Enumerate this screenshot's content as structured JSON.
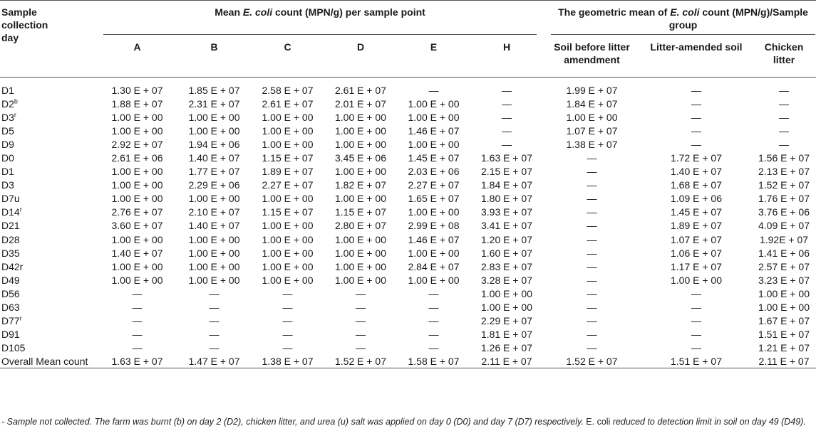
{
  "header": {
    "day_col": "Sample collection day",
    "group1_prefix": "Mean ",
    "group1_italic": "E. coli",
    "group1_suffix": " count (MPN/g) per sample point",
    "group2_prefix": "The geometric mean of ",
    "group2_italic": "E. coli",
    "group2_suffix": " count (MPN/g)/Sample group",
    "points": [
      "A",
      "B",
      "C",
      "D",
      "E",
      "H"
    ],
    "groups": [
      "Soil before litter amendment",
      "Litter-amended soil",
      "Chicken litter"
    ]
  },
  "rows": [
    {
      "day": "D1",
      "sup": "",
      "vals": [
        "1.30 E + 07",
        "1.85 E + 07",
        "2.58 E + 07",
        "2.61 E + 07",
        "—",
        "—",
        "1.99 E + 07",
        "—",
        "—"
      ]
    },
    {
      "day": "D2",
      "sup": "b",
      "vals": [
        "1.88 E + 07",
        "2.31 E + 07",
        "2.61 E + 07",
        "2.01 E + 07",
        "1.00 E + 00",
        "—",
        "1.84 E + 07",
        "—",
        "—"
      ]
    },
    {
      "day": "D3",
      "sup": "r",
      "vals": [
        "1.00 E + 00",
        "1.00 E + 00",
        "1.00 E + 00",
        "1.00 E + 00",
        "1.00 E + 00",
        "—",
        "1.00 E + 00",
        "—",
        "—"
      ]
    },
    {
      "day": "D5",
      "sup": "",
      "vals": [
        "1.00 E + 00",
        "1.00 E + 00",
        "1.00 E + 00",
        "1.00 E + 00",
        "1.46 E + 07",
        "—",
        "1.07 E + 07",
        "—",
        "—"
      ]
    },
    {
      "day": "D9",
      "sup": "",
      "vals": [
        "2.92 E + 07",
        "1.94 E + 06",
        "1.00 E + 00",
        "1.00 E + 00",
        "1.00 E + 00",
        "—",
        "1.38 E + 07",
        "—",
        "—"
      ]
    },
    {
      "day": "D0",
      "sup": "",
      "vals": [
        "2.61 E + 06",
        "1.40 E + 07",
        "1.15 E + 07",
        "3.45 E + 06",
        "1.45 E + 07",
        "1.63 E + 07",
        "—",
        "1.72 E + 07",
        "1.56 E + 07"
      ]
    },
    {
      "day": "D1",
      "sup": "",
      "vals": [
        "1.00 E + 00",
        "1.77 E + 07",
        "1.89 E + 07",
        "1.00 E + 00",
        "2.03 E + 06",
        "2.15 E + 07",
        "—",
        "1.40 E + 07",
        "2.13 E + 07"
      ]
    },
    {
      "day": "D3",
      "sup": "",
      "vals": [
        "1.00 E + 00",
        "2.29 E + 06",
        "2.27 E + 07",
        "1.82 E + 07",
        "2.27 E + 07",
        "1.84 E + 07",
        "—",
        "1.68 E + 07",
        "1.52 E + 07"
      ]
    },
    {
      "day": "D7u",
      "sup": "",
      "vals": [
        "1.00 E + 00",
        "1.00 E + 00",
        "1.00 E + 00",
        "1.00 E + 00",
        "1.65 E + 07",
        "1.80 E + 07",
        "—",
        "1.09 E + 06",
        "1.76 E + 07"
      ]
    },
    {
      "day": "D14",
      "sup": "r",
      "vals": [
        "2.76 E + 07",
        "2.10 E + 07",
        "1.15 E + 07",
        "1.15 E + 07",
        "1.00 E + 00",
        "3.93 E + 07",
        "—",
        "1.45 E + 07",
        "3.76 E + 06"
      ]
    },
    {
      "day": "D21",
      "sup": "",
      "vals": [
        "3.60 E + 07",
        "1.40 E + 07",
        "1.00 E + 00",
        "2.80 E + 07",
        "2.99 E + 08",
        "3.41 E + 07",
        "—",
        "1.89 E + 07",
        "4.09 E + 07"
      ]
    },
    {
      "day": "D28",
      "sup": "",
      "vals": [
        "1.00 E + 00",
        "1.00 E + 00",
        "1.00 E + 00",
        "1.00 E + 00",
        "1.46 E + 07",
        "1.20 E + 07",
        "—",
        "1.07 E + 07",
        "1.92E + 07"
      ]
    },
    {
      "day": "D35",
      "sup": "",
      "vals": [
        "1.40 E + 07",
        "1.00 E + 00",
        "1.00 E + 00",
        "1.00 E + 00",
        "1.00 E + 00",
        "1.60 E + 07",
        "—",
        "1.06 E + 07",
        "1.41 E + 06"
      ]
    },
    {
      "day": "D42r",
      "sup": "",
      "vals": [
        "1.00 E + 00",
        "1.00 E + 00",
        "1.00 E + 00",
        "1.00 E + 00",
        "2.84 E + 07",
        "2.83 E + 07",
        "—",
        "1.17 E + 07",
        "2.57 E + 07"
      ]
    },
    {
      "day": "D49",
      "sup": "",
      "vals": [
        "1.00 E + 00",
        "1.00 E + 00",
        "1.00 E + 00",
        "1.00 E + 00",
        "1.00 E + 00",
        "3.28 E + 07",
        "—",
        "1.00 E + 00",
        "3.23 E + 07"
      ]
    },
    {
      "day": "D56",
      "sup": "",
      "vals": [
        "—",
        "—",
        "—",
        "—",
        "—",
        "1.00 E + 00",
        "—",
        "—",
        "1.00 E + 00"
      ]
    },
    {
      "day": "D63",
      "sup": "",
      "vals": [
        "—",
        "—",
        "—",
        "—",
        "—",
        "1.00 E + 00",
        "—",
        "—",
        "1.00 E + 00"
      ]
    },
    {
      "day": "D77",
      "sup": "r",
      "vals": [
        "—",
        "—",
        "—",
        "—",
        "—",
        "2.29 E + 07",
        "—",
        "—",
        "1.67 E + 07"
      ]
    },
    {
      "day": "D91",
      "sup": "",
      "vals": [
        "—",
        "—",
        "—",
        "—",
        "—",
        "1.81 E + 07",
        "—",
        "—",
        "1.51 E + 07"
      ]
    },
    {
      "day": "D105",
      "sup": "",
      "vals": [
        "—",
        "—",
        "—",
        "—",
        "—",
        "1.26 E + 07",
        "—",
        "—",
        "1.21 E + 07"
      ]
    },
    {
      "day": "Overall Mean count",
      "sup": "",
      "vals": [
        "1.63 E + 07",
        "1.47 E + 07",
        "1.38 E + 07",
        "1.52 E + 07",
        "1.58 E + 07",
        "2.11 E + 07",
        "1.52 E + 07",
        "1.51 E + 07",
        "2.11 E + 07"
      ]
    }
  ],
  "footnote": {
    "part1": "- Sample not collected. The farm was burnt (b) on day 2 (D2), chicken litter, and urea (u) salt was applied on day 0 (D0) and day 7 (D7) respectively. ",
    "part2": "E. coli",
    "part3": " reduced to detection limit in soil on day 49 (D49)."
  }
}
